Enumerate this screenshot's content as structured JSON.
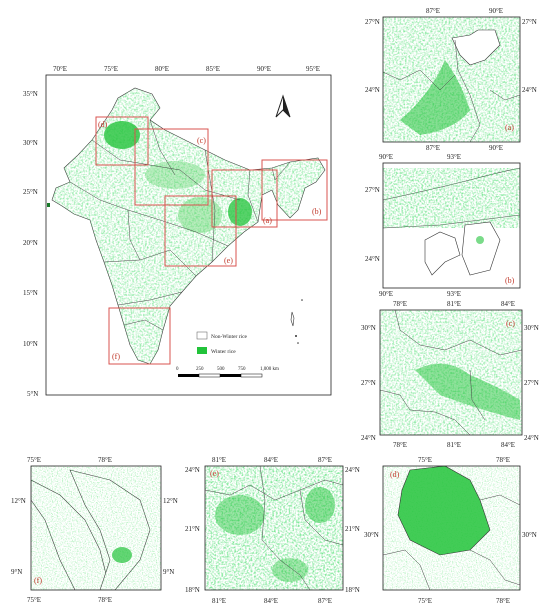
{
  "main_map": {
    "lon_labels": [
      "70°E",
      "75°E",
      "80°E",
      "85°E",
      "90°E",
      "95°E"
    ],
    "lat_labels": [
      "35°N",
      "30°N",
      "25°N",
      "20°N",
      "15°N",
      "10°N",
      "5°N"
    ],
    "region_labels": [
      "(d)",
      "(c)",
      "(a)",
      "(b)",
      "(e)",
      "(f)"
    ],
    "legend": {
      "non_rice": "Non-Winter rice",
      "rice": "Winter rice"
    },
    "scale": [
      "0",
      "250",
      "500",
      "750",
      "1,000 km"
    ],
    "north_arrow": "north-arrow-icon"
  },
  "panels": {
    "a": {
      "label": "(a)",
      "top": [
        "87°E",
        "90°E"
      ],
      "left": [
        "27°N",
        "24°N"
      ],
      "right": [
        "27°N",
        "24°N"
      ],
      "bottom": [
        "87°E",
        "90°E"
      ]
    },
    "b": {
      "label": "(b)",
      "top": [
        "90°E",
        "93°E"
      ],
      "left": [
        "27°N",
        "24°N"
      ],
      "bottom": [
        "90°E",
        "93°E"
      ]
    },
    "c": {
      "label": "(c)",
      "top": [
        "78°E",
        "81°E",
        "84°E"
      ],
      "left": [
        "30°N",
        "27°N",
        "24°N"
      ],
      "right": [
        "30°N",
        "27°N",
        "24°N"
      ],
      "bottom": [
        "78°E",
        "81°E",
        "84°E"
      ]
    },
    "f": {
      "label": "(f)",
      "top": [
        "75°E",
        "78°E"
      ],
      "left": [
        "12°N",
        "9°N"
      ],
      "right": [
        "12°N",
        "9°N"
      ],
      "bottom": [
        "75°E",
        "78°E"
      ]
    },
    "e": {
      "label": "(e)",
      "top": [
        "81°E",
        "84°E",
        "87°E"
      ],
      "left": [
        "24°N",
        "21°N",
        "18°N"
      ],
      "right": [
        "24°N",
        "21°N",
        "18°N"
      ],
      "bottom": [
        "81°E",
        "84°E",
        "87°E"
      ]
    },
    "d": {
      "label": "(d)",
      "top": [
        "75°E",
        "78°E"
      ],
      "left": [
        "30°N"
      ],
      "right": [
        "30°N"
      ],
      "bottom": [
        "75°E",
        "78°E"
      ]
    }
  },
  "colors": {
    "rice": "#22c33a",
    "rice_light": "#9fe3a6",
    "redbox": "#d9534f"
  }
}
